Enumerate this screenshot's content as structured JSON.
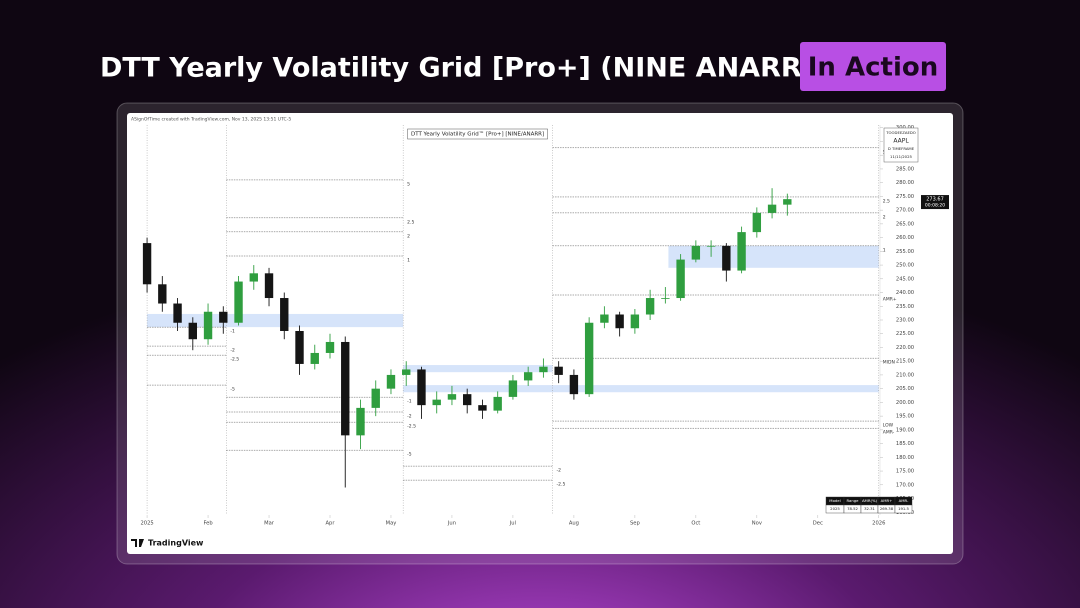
{
  "header": {
    "title": "DTT Yearly Volatility Grid [Pro+] (NINE ANARR)",
    "badge": "In Action"
  },
  "screenshot": {
    "note": "ASignOfTime created with TradingView.com, Nov 13, 2025 13:51 UTC-5",
    "brand": "TradingView"
  },
  "chart_data": {
    "type": "candlestick",
    "title": "DTT Yearly Volatility Grid™ [Pro+] [NINE/ANARR]",
    "symbol_box": [
      "TOODEEZAEDO",
      "AAPL",
      "D TIMEFRAME",
      "11/11/2025"
    ],
    "x": [
      0,
      0.25,
      0.5,
      0.75,
      1,
      1.25,
      1.5,
      1.75,
      2,
      2.25,
      2.5,
      2.75,
      3,
      3.25,
      3.5,
      3.75,
      4,
      4.25,
      4.5,
      4.75,
      5,
      5.25,
      5.5,
      5.75,
      6,
      6.25,
      6.5,
      6.75,
      7,
      7.25,
      7.5,
      7.75,
      8,
      8.25,
      8.5,
      8.75,
      9,
      9.25,
      9.5,
      9.75,
      10,
      10.25,
      10.5
    ],
    "open": [
      258,
      243,
      236,
      229,
      223,
      233,
      229,
      244,
      247,
      238,
      226,
      214,
      218,
      222,
      188,
      198,
      205,
      210,
      212,
      199,
      201,
      203,
      199,
      197,
      202,
      208,
      211,
      213,
      210,
      203,
      229,
      232,
      227,
      232,
      238,
      238,
      252,
      257,
      257,
      248,
      262,
      269,
      272
    ],
    "high": [
      260,
      246,
      238,
      231,
      236,
      235,
      246,
      250,
      249,
      240,
      228,
      221,
      225,
      224,
      201,
      208,
      212,
      215,
      213,
      204,
      206,
      205,
      201,
      204,
      210,
      213,
      216,
      215,
      212,
      231,
      235,
      233,
      234,
      241,
      242,
      254,
      259,
      259,
      258,
      264,
      271,
      278,
      276
    ],
    "low": [
      240,
      233,
      226,
      219,
      221,
      225,
      228,
      241,
      235,
      223,
      210,
      212,
      216,
      169,
      183,
      195,
      203,
      206,
      194,
      196,
      199,
      196,
      194,
      196,
      201,
      206,
      209,
      207,
      201,
      202,
      227,
      224,
      225,
      230,
      236,
      237,
      251,
      253,
      244,
      247,
      260,
      267,
      268
    ],
    "close": [
      243,
      236,
      229,
      223,
      233,
      229,
      244,
      247,
      238,
      226,
      214,
      218,
      222,
      188,
      198,
      205,
      210,
      212,
      199,
      201,
      203,
      199,
      197,
      202,
      208,
      211,
      213,
      210,
      203,
      229,
      232,
      227,
      232,
      238,
      238,
      252,
      257,
      257,
      248,
      262,
      269,
      272,
      274
    ],
    "up_color": "#2f9e3f",
    "down_color": "#151515",
    "xlim": [
      -0.28,
      12.02
    ],
    "xticks": [
      {
        "value": 0,
        "label": "2025"
      },
      {
        "value": 1,
        "label": "Feb"
      },
      {
        "value": 2,
        "label": "Mar"
      },
      {
        "value": 3,
        "label": "Apr"
      },
      {
        "value": 4,
        "label": "May"
      },
      {
        "value": 5,
        "label": "Jun"
      },
      {
        "value": 6,
        "label": "Jul"
      },
      {
        "value": 7,
        "label": "Aug"
      },
      {
        "value": 8,
        "label": "Sep"
      },
      {
        "value": 9,
        "label": "Oct"
      },
      {
        "value": 10,
        "label": "Nov"
      },
      {
        "value": 11,
        "label": "Dec"
      },
      {
        "value": 12,
        "label": "2026"
      }
    ],
    "ylim": [
      159,
      301
    ],
    "yticks": [
      {
        "value": 160,
        "label": "160.00"
      },
      {
        "value": 165,
        "label": "165.00"
      },
      {
        "value": 170,
        "label": "170.00"
      },
      {
        "value": 175,
        "label": "175.00"
      },
      {
        "value": 180,
        "label": "180.00"
      },
      {
        "value": 185,
        "label": "185.00"
      },
      {
        "value": 190,
        "label": "190.00"
      },
      {
        "value": 195,
        "label": "195.00"
      },
      {
        "value": 200,
        "label": "200.00"
      },
      {
        "value": 205,
        "label": "205.00"
      },
      {
        "value": 210,
        "label": "210.00"
      },
      {
        "value": 215,
        "label": "215.00"
      },
      {
        "value": 220,
        "label": "220.00"
      },
      {
        "value": 225,
        "label": "225.00"
      },
      {
        "value": 230,
        "label": "230.00"
      },
      {
        "value": 235,
        "label": "235.00"
      },
      {
        "value": 240,
        "label": "240.00"
      },
      {
        "value": 245,
        "label": "245.00"
      },
      {
        "value": 250,
        "label": "250.00"
      },
      {
        "value": 255,
        "label": "255.00"
      },
      {
        "value": 260,
        "label": "260.00"
      },
      {
        "value": 265,
        "label": "265.00"
      },
      {
        "value": 270,
        "label": "270.00"
      },
      {
        "value": 275,
        "label": "275.00"
      },
      {
        "value": 280,
        "label": "280.00"
      },
      {
        "value": 285,
        "label": "285.00"
      },
      {
        "value": 290,
        "label": "290.00"
      },
      {
        "value": 295,
        "label": "295.00"
      },
      {
        "value": 300,
        "label": "300.00"
      }
    ],
    "last_price": 273.67,
    "countdown": "00:08:20",
    "periods": [
      0,
      1.3,
      4.2,
      6.65,
      12
    ],
    "levels": [
      {
        "x0": 0,
        "x1": 1.3,
        "value": 227.4,
        "label": "-1"
      },
      {
        "x0": 0,
        "x1": 1.3,
        "value": 220.5,
        "label": "-2"
      },
      {
        "x0": 0,
        "x1": 1.3,
        "value": 217.2,
        "label": "-2.5"
      },
      {
        "x0": 0,
        "x1": 1.3,
        "value": 206.3,
        "label": "-5"
      },
      {
        "x0": 1.3,
        "x1": 4.2,
        "value": 281,
        "label": "5"
      },
      {
        "x0": 1.3,
        "x1": 4.2,
        "value": 267.2,
        "label": "2.5"
      },
      {
        "x0": 1.3,
        "x1": 4.2,
        "value": 262.1,
        "label": "2"
      },
      {
        "x0": 1.3,
        "x1": 4.2,
        "value": 253.3,
        "label": "1"
      },
      {
        "x0": 1.3,
        "x1": 4.2,
        "value": 201.9,
        "label": "-1"
      },
      {
        "x0": 1.3,
        "x1": 4.2,
        "value": 196.5,
        "label": "-2"
      },
      {
        "x0": 1.3,
        "x1": 4.2,
        "value": 192.8,
        "label": "-2.5"
      },
      {
        "x0": 1.3,
        "x1": 4.2,
        "value": 182.6,
        "label": "-5"
      },
      {
        "x0": 4.2,
        "x1": 6.65,
        "value": 176.8,
        "label": "-2"
      },
      {
        "x0": 4.2,
        "x1": 6.65,
        "value": 171.7,
        "label": "-2.5"
      },
      {
        "x0": 6.65,
        "x1": 12,
        "value": 292.7,
        "label": "5"
      },
      {
        "x0": 6.65,
        "x1": 12,
        "value": 274.8,
        "label": "2.5"
      },
      {
        "x0": 6.65,
        "x1": 12,
        "value": 269,
        "label": "2"
      },
      {
        "x0": 6.65,
        "x1": 12,
        "value": 257,
        "label": "1"
      },
      {
        "x0": 6.65,
        "x1": 12,
        "value": 239.1,
        "label": "AMR+"
      },
      {
        "x0": 6.65,
        "x1": 12,
        "value": 216.1,
        "label": "MIDN"
      },
      {
        "x0": 6.65,
        "x1": 12,
        "value": 193.2,
        "label": "LOW"
      },
      {
        "x0": 6.65,
        "x1": 12,
        "value": 190.6,
        "label": "AMR-"
      }
    ],
    "zones": [
      {
        "x0": 0,
        "x1": 4.2,
        "low": 227.4,
        "high": 232.2
      },
      {
        "x0": 4.2,
        "x1": 6.65,
        "low": 211,
        "high": 213.6
      },
      {
        "x0": 4.2,
        "x1": 12,
        "low": 203.7,
        "high": 206.3
      },
      {
        "x0": 8.55,
        "x1": 12,
        "low": 249,
        "high": 257
      }
    ],
    "table": {
      "header": [
        "Model",
        "Range",
        "AMR(%)",
        "AMR+",
        "AMR-"
      ],
      "rows": [
        [
          "2025",
          "78.52",
          "32.31",
          "269.38",
          "191.5"
        ]
      ]
    }
  }
}
